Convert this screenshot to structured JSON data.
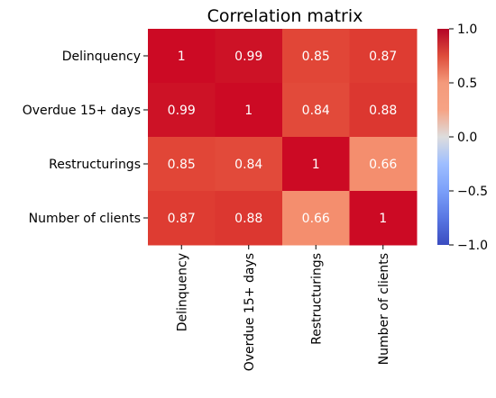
{
  "chart_data": {
    "type": "heatmap",
    "title": "Correlation matrix",
    "xlabel": "",
    "ylabel": "",
    "row_labels": [
      "Delinquency",
      "Overdue 15+ days",
      "Restructurings",
      "Number of clients"
    ],
    "col_labels": [
      "Delinquency",
      "Overdue 15+ days",
      "Restructurings",
      "Number of clients"
    ],
    "values": [
      [
        1,
        0.99,
        0.85,
        0.87
      ],
      [
        0.99,
        1,
        0.84,
        0.88
      ],
      [
        0.85,
        0.84,
        1,
        0.66
      ],
      [
        0.87,
        0.88,
        0.66,
        1
      ]
    ],
    "cell_labels": [
      [
        "1",
        "0.99",
        "0.85",
        "0.87"
      ],
      [
        "0.99",
        "1",
        "0.84",
        "0.88"
      ],
      [
        "0.85",
        "0.84",
        "1",
        "0.66"
      ],
      [
        "0.87",
        "0.88",
        "0.66",
        "1"
      ]
    ],
    "colormap": "coolwarm",
    "vmin": -1,
    "vmax": 1,
    "colorbar_ticks": [
      1.0,
      0.5,
      0.0,
      -0.5,
      -1.0
    ],
    "colorbar_tick_labels": [
      "1.0",
      "0.5",
      "0.0",
      "−0.5",
      "−1.0"
    ],
    "grid": false,
    "colors": {
      "low": "#3b4cc0",
      "mid": "#dddddd",
      "high": "#b40426",
      "text": "#ffffff",
      "axis_text": "#000000"
    }
  }
}
